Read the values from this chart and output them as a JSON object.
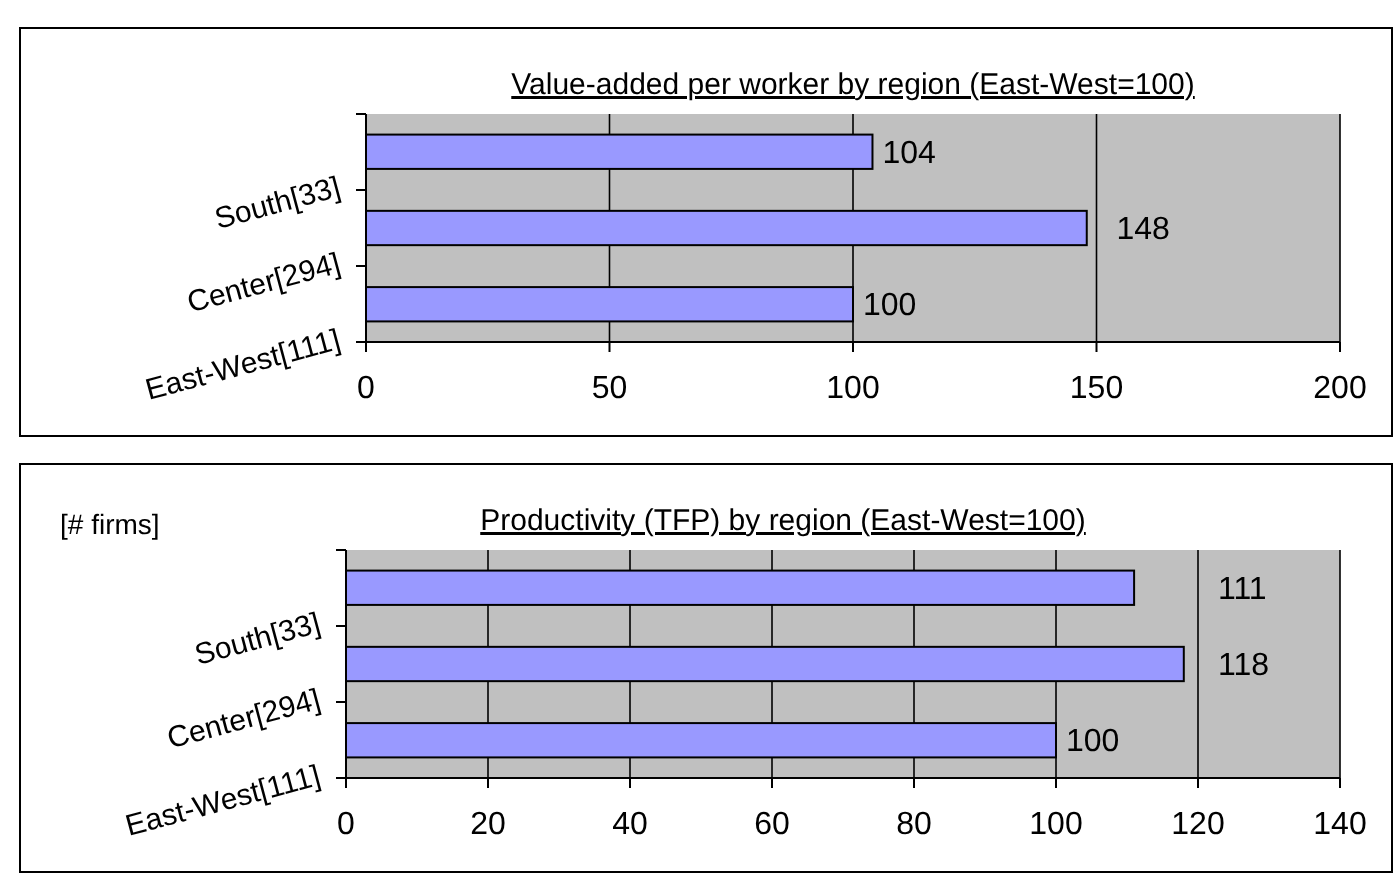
{
  "chart_data": [
    {
      "type": "bar",
      "orientation": "horizontal",
      "title": "Value-added per worker by region (East-West=100)",
      "categories": [
        "South[33]",
        "Center[294]",
        "East-West[111]"
      ],
      "values": [
        104,
        148,
        100
      ],
      "color": "#9999ff",
      "xlim": [
        0,
        200
      ],
      "xticks": [
        0,
        50,
        100,
        150,
        200
      ],
      "grid": "x",
      "data_labels": true
    },
    {
      "type": "bar",
      "orientation": "horizontal",
      "title": "Productivity (TFP) by region (East-West=100)",
      "categories": [
        "South[33]",
        "Center[294]",
        "East-West[111]"
      ],
      "values": [
        111,
        118,
        100
      ],
      "color": "#9999ff",
      "xlim": [
        0,
        140
      ],
      "xticks": [
        0,
        20,
        40,
        60,
        80,
        100,
        120,
        140
      ],
      "grid": "x",
      "data_labels": true,
      "annotations": [
        "[# firms]"
      ]
    }
  ]
}
